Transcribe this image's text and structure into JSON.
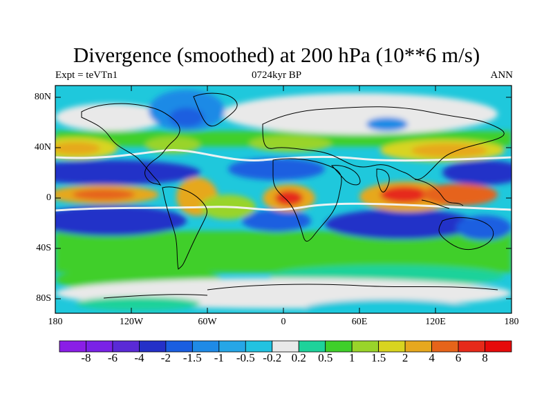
{
  "title": "Divergence (smoothed) at 200 hPa (10**6 m/s)",
  "subtitle_left": "Expt = teVTn1",
  "subtitle_center": "0724kyr BP",
  "subtitle_right": "ANN",
  "lat_ticks": [
    "80N",
    "40N",
    "0",
    "40S",
    "80S"
  ],
  "lon_ticks": [
    "180",
    "120W",
    "60W",
    "0",
    "60E",
    "120E",
    "180"
  ],
  "colorbar": {
    "labels": [
      "-8",
      "-6",
      "-4",
      "-2",
      "-1.5",
      "-1",
      "-0.5",
      "-0.2",
      "0.2",
      "0.5",
      "1",
      "1.5",
      "2",
      "4",
      "6",
      "8"
    ],
    "colors": [
      "#8a1ee6",
      "#7a22e6",
      "#5a2ad6",
      "#2430c8",
      "#1a5ee0",
      "#1f8ae6",
      "#26a6e6",
      "#22c2e0",
      "#e9e9e9",
      "#1ed29a",
      "#3fcf2a",
      "#99d42a",
      "#d8d420",
      "#e6a81e",
      "#e6641a",
      "#e62a1a",
      "#e60a0a"
    ]
  },
  "colors": {
    "land_outline": "#000000",
    "frame": "#000000"
  }
}
